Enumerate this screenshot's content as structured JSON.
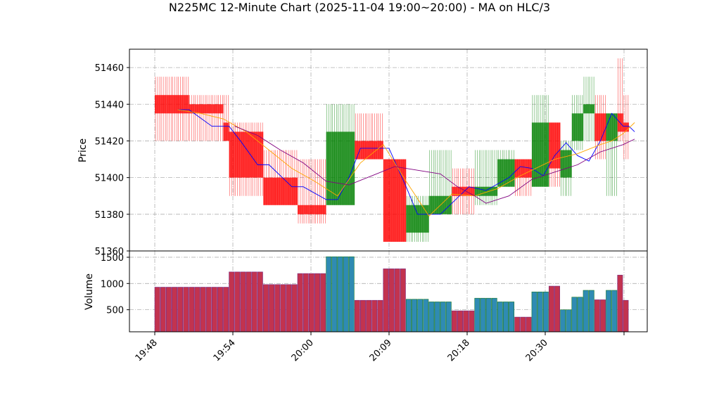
{
  "chart_data": {
    "type": "candlestick",
    "title": "N225MC 12-Minute Chart (2025-11-04 19:00~20:00) - MA on HLC/3",
    "price_panel": {
      "ylabel": "Price",
      "ylim": [
        51360,
        51470
      ],
      "yticks": [
        51360,
        51380,
        51400,
        51420,
        51440,
        51460
      ],
      "grid": true
    },
    "volume_panel": {
      "ylabel": "Volume",
      "ylim": [
        80,
        1620
      ],
      "yticks": [
        500,
        1000,
        1500
      ],
      "grid": true
    },
    "x_ticks": [
      {
        "index": 0,
        "label": "19:48"
      },
      {
        "index": 13,
        "label": "19:54"
      },
      {
        "index": 26,
        "label": "20:00"
      },
      {
        "index": 39,
        "label": "20:09"
      },
      {
        "index": 52,
        "label": "20:18"
      },
      {
        "index": 65,
        "label": "20:30"
      },
      {
        "index": 78,
        "label": ""
      }
    ],
    "bar_count": 83,
    "candles": [
      {
        "start": 0,
        "end": 5,
        "open": 51445,
        "high": 51455,
        "low": 51420,
        "close": 51435,
        "volume": 930
      },
      {
        "start": 6,
        "end": 11,
        "open": 51440,
        "high": 51445,
        "low": 51420,
        "close": 51435,
        "volume": 930
      },
      {
        "start": 12,
        "end": 12,
        "open": 51430,
        "high": 51445,
        "low": 51420,
        "close": 51420,
        "volume": 930
      },
      {
        "start": 13,
        "end": 18,
        "open": 51425,
        "high": 51430,
        "low": 51390,
        "close": 51400,
        "volume": 1220
      },
      {
        "start": 19,
        "end": 24,
        "open": 51400,
        "high": 51415,
        "low": 51385,
        "close": 51385,
        "volume": 980
      },
      {
        "start": 25,
        "end": 29,
        "open": 51385,
        "high": 51410,
        "low": 51375,
        "close": 51380,
        "volume": 1190
      },
      {
        "start": 30,
        "end": 34,
        "open": 51385,
        "high": 51440,
        "low": 51385,
        "close": 51425,
        "volume": 1510
      },
      {
        "start": 35,
        "end": 39,
        "open": 51420,
        "high": 51435,
        "low": 51410,
        "close": 51410,
        "volume": 680
      },
      {
        "start": 40,
        "end": 43,
        "open": 51410,
        "high": 51410,
        "low": 51365,
        "close": 51365,
        "volume": 1280
      },
      {
        "start": 44,
        "end": 47,
        "open": 51370,
        "high": 51390,
        "low": 51365,
        "close": 51385,
        "volume": 700
      },
      {
        "start": 48,
        "end": 51,
        "open": 51380,
        "high": 51415,
        "low": 51380,
        "close": 51390,
        "volume": 650
      },
      {
        "start": 52,
        "end": 55,
        "open": 51395,
        "high": 51405,
        "low": 51380,
        "close": 51390,
        "volume": 480
      },
      {
        "start": 56,
        "end": 59,
        "open": 51390,
        "high": 51415,
        "low": 51385,
        "close": 51395,
        "volume": 720
      },
      {
        "start": 60,
        "end": 62,
        "open": 51395,
        "high": 51415,
        "low": 51395,
        "close": 51410,
        "volume": 650
      },
      {
        "start": 63,
        "end": 65,
        "open": 51410,
        "high": 51410,
        "low": 51390,
        "close": 51400,
        "volume": 360
      },
      {
        "start": 66,
        "end": 68,
        "open": 51395,
        "high": 51445,
        "low": 51395,
        "close": 51430,
        "volume": 840
      },
      {
        "start": 69,
        "end": 70,
        "open": 51430,
        "high": 51430,
        "low": 51395,
        "close": 51405,
        "volume": 950
      },
      {
        "start": 71,
        "end": 72,
        "open": 51400,
        "high": 51420,
        "low": 51390,
        "close": 51415,
        "volume": 500
      },
      {
        "start": 73,
        "end": 74,
        "open": 51420,
        "high": 51445,
        "low": 51415,
        "close": 51435,
        "volume": 740
      },
      {
        "start": 75,
        "end": 76,
        "open": 51435,
        "high": 51455,
        "low": 51420,
        "close": 51440,
        "volume": 870
      },
      {
        "start": 77,
        "end": 78,
        "open": 51435,
        "high": 51445,
        "low": 51410,
        "close": 51420,
        "volume": 690
      },
      {
        "start": 79,
        "end": 80,
        "open": 51420,
        "high": 51435,
        "low": 51390,
        "close": 51435,
        "volume": 870
      },
      {
        "start": 81,
        "end": 81,
        "open": 51435,
        "high": 51465,
        "low": 51420,
        "close": 51425,
        "volume": 1160
      },
      {
        "start": 82,
        "end": 82,
        "open": 51430,
        "high": 51445,
        "low": 51410,
        "close": 51425,
        "volume": 680
      }
    ],
    "ma_lines": [
      {
        "color": "#0000ff",
        "points": [
          [
            4,
            51437
          ],
          [
            6,
            51437
          ],
          [
            10,
            51428
          ],
          [
            13,
            51428
          ],
          [
            15,
            51420
          ],
          [
            18,
            51407
          ],
          [
            20,
            51407
          ],
          [
            24,
            51395
          ],
          [
            26,
            51395
          ],
          [
            30,
            51388
          ],
          [
            32,
            51388
          ],
          [
            34,
            51400
          ],
          [
            36,
            51416
          ],
          [
            41,
            51416
          ],
          [
            44,
            51395
          ],
          [
            46,
            51380
          ],
          [
            50,
            51380
          ],
          [
            55,
            51395
          ],
          [
            58,
            51393
          ],
          [
            62,
            51400
          ],
          [
            64,
            51406
          ],
          [
            66,
            51405
          ],
          [
            68,
            51401
          ],
          [
            70,
            51412
          ],
          [
            72,
            51419
          ],
          [
            74,
            51412
          ],
          [
            76,
            51409
          ],
          [
            78,
            51420
          ],
          [
            80,
            51435
          ],
          [
            82,
            51428
          ],
          [
            83,
            51428
          ],
          [
            84,
            51425
          ]
        ]
      },
      {
        "color": "#ffa500",
        "points": [
          [
            4,
            51437
          ],
          [
            8,
            51435
          ],
          [
            12,
            51432
          ],
          [
            16,
            51425
          ],
          [
            20,
            51415
          ],
          [
            24,
            51405
          ],
          [
            28,
            51398
          ],
          [
            32,
            51390
          ],
          [
            36,
            51408
          ],
          [
            40,
            51418
          ],
          [
            44,
            51398
          ],
          [
            48,
            51379
          ],
          [
            52,
            51391
          ],
          [
            56,
            51390
          ],
          [
            60,
            51394
          ],
          [
            64,
            51401
          ],
          [
            66,
            51404
          ],
          [
            70,
            51410
          ],
          [
            74,
            51413
          ],
          [
            78,
            51418
          ],
          [
            80,
            51420
          ],
          [
            82,
            51424
          ],
          [
            84,
            51430
          ]
        ]
      },
      {
        "color": "#800080",
        "points": [
          [
            14,
            51428
          ],
          [
            18,
            51423
          ],
          [
            22,
            51415
          ],
          [
            26,
            51408
          ],
          [
            30,
            51398
          ],
          [
            34,
            51396
          ],
          [
            38,
            51401
          ],
          [
            42,
            51406
          ],
          [
            46,
            51404
          ],
          [
            50,
            51402
          ],
          [
            53,
            51395
          ],
          [
            56,
            51390
          ],
          [
            58,
            51386
          ],
          [
            62,
            51390
          ],
          [
            66,
            51399
          ],
          [
            70,
            51403
          ],
          [
            74,
            51407
          ],
          [
            78,
            51414
          ],
          [
            82,
            51418
          ],
          [
            84,
            51421
          ]
        ]
      }
    ],
    "colors": {
      "up": "#008000",
      "down": "#ff0000",
      "volume_up": "#2f8bb3",
      "volume_down": "#c2334f"
    }
  }
}
